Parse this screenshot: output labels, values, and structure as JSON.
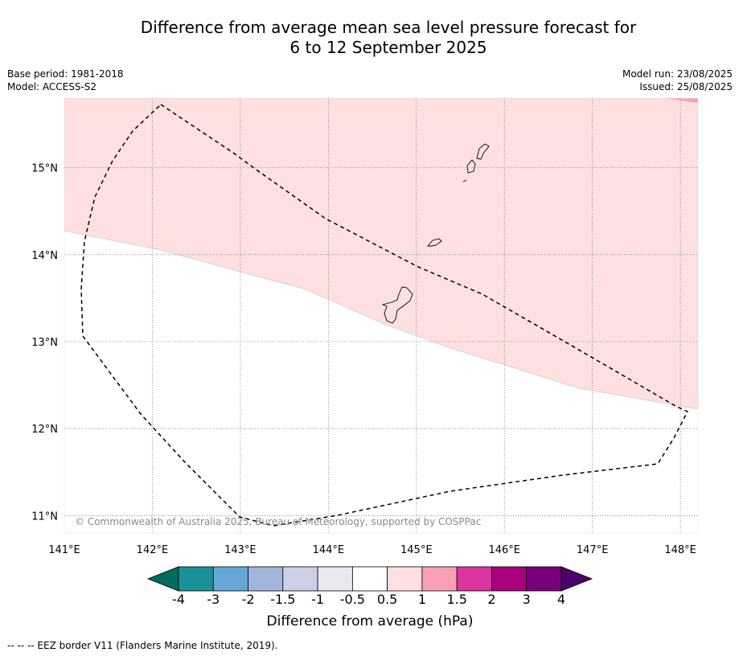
{
  "title": {
    "line1": "Difference from average mean sea level pressure forecast for",
    "line2": "6 to 12 September 2025"
  },
  "meta": {
    "base_period": "Base period: 1981-2018",
    "model": "Model: ACCESS-S2",
    "model_run": "Model run: 23/08/2025",
    "issued": "Issued: 25/08/2025"
  },
  "map": {
    "lon_ticks": [
      {
        "value": 141,
        "label": "141°E"
      },
      {
        "value": 142,
        "label": "142°E"
      },
      {
        "value": 143,
        "label": "143°E"
      },
      {
        "value": 144,
        "label": "144°E"
      },
      {
        "value": 145,
        "label": "145°E"
      },
      {
        "value": 146,
        "label": "146°E"
      },
      {
        "value": 147,
        "label": "147°E"
      },
      {
        "value": 148,
        "label": "148°E"
      }
    ],
    "lat_ticks": [
      {
        "value": 15,
        "label": "15°N"
      },
      {
        "value": 14,
        "label": "14°N"
      },
      {
        "value": 13,
        "label": "13°N"
      },
      {
        "value": 12,
        "label": "12°N"
      },
      {
        "value": 11,
        "label": "11°N"
      }
    ],
    "copyright": "© Commonwealth of Australia 2025, Bureau of Meteorology, supported by COSPPac",
    "regions": [
      {
        "category": "0.5 to 1",
        "color": "#fde0df"
      },
      {
        "category": "1 to 1.5",
        "color": "#f9a0b6"
      }
    ]
  },
  "colorbar": {
    "label": "Difference from average (hPa)",
    "colors": [
      "#006c5f",
      "#1a9197",
      "#65a8d3",
      "#a2b5db",
      "#cccfe6",
      "#eae8ef",
      "#ffffff",
      "#fde0df",
      "#f9a0b6",
      "#db35a0",
      "#a8007f",
      "#7a007a",
      "#4a006a"
    ],
    "ticks": [
      "-4",
      "-3",
      "-2",
      "-1.5",
      "-1",
      "-0.5",
      "0.5",
      "1",
      "1.5",
      "2",
      "3",
      "4"
    ]
  },
  "footer": "--  --  -- EEZ border V11 (Flanders Marine Institute, 2019)."
}
